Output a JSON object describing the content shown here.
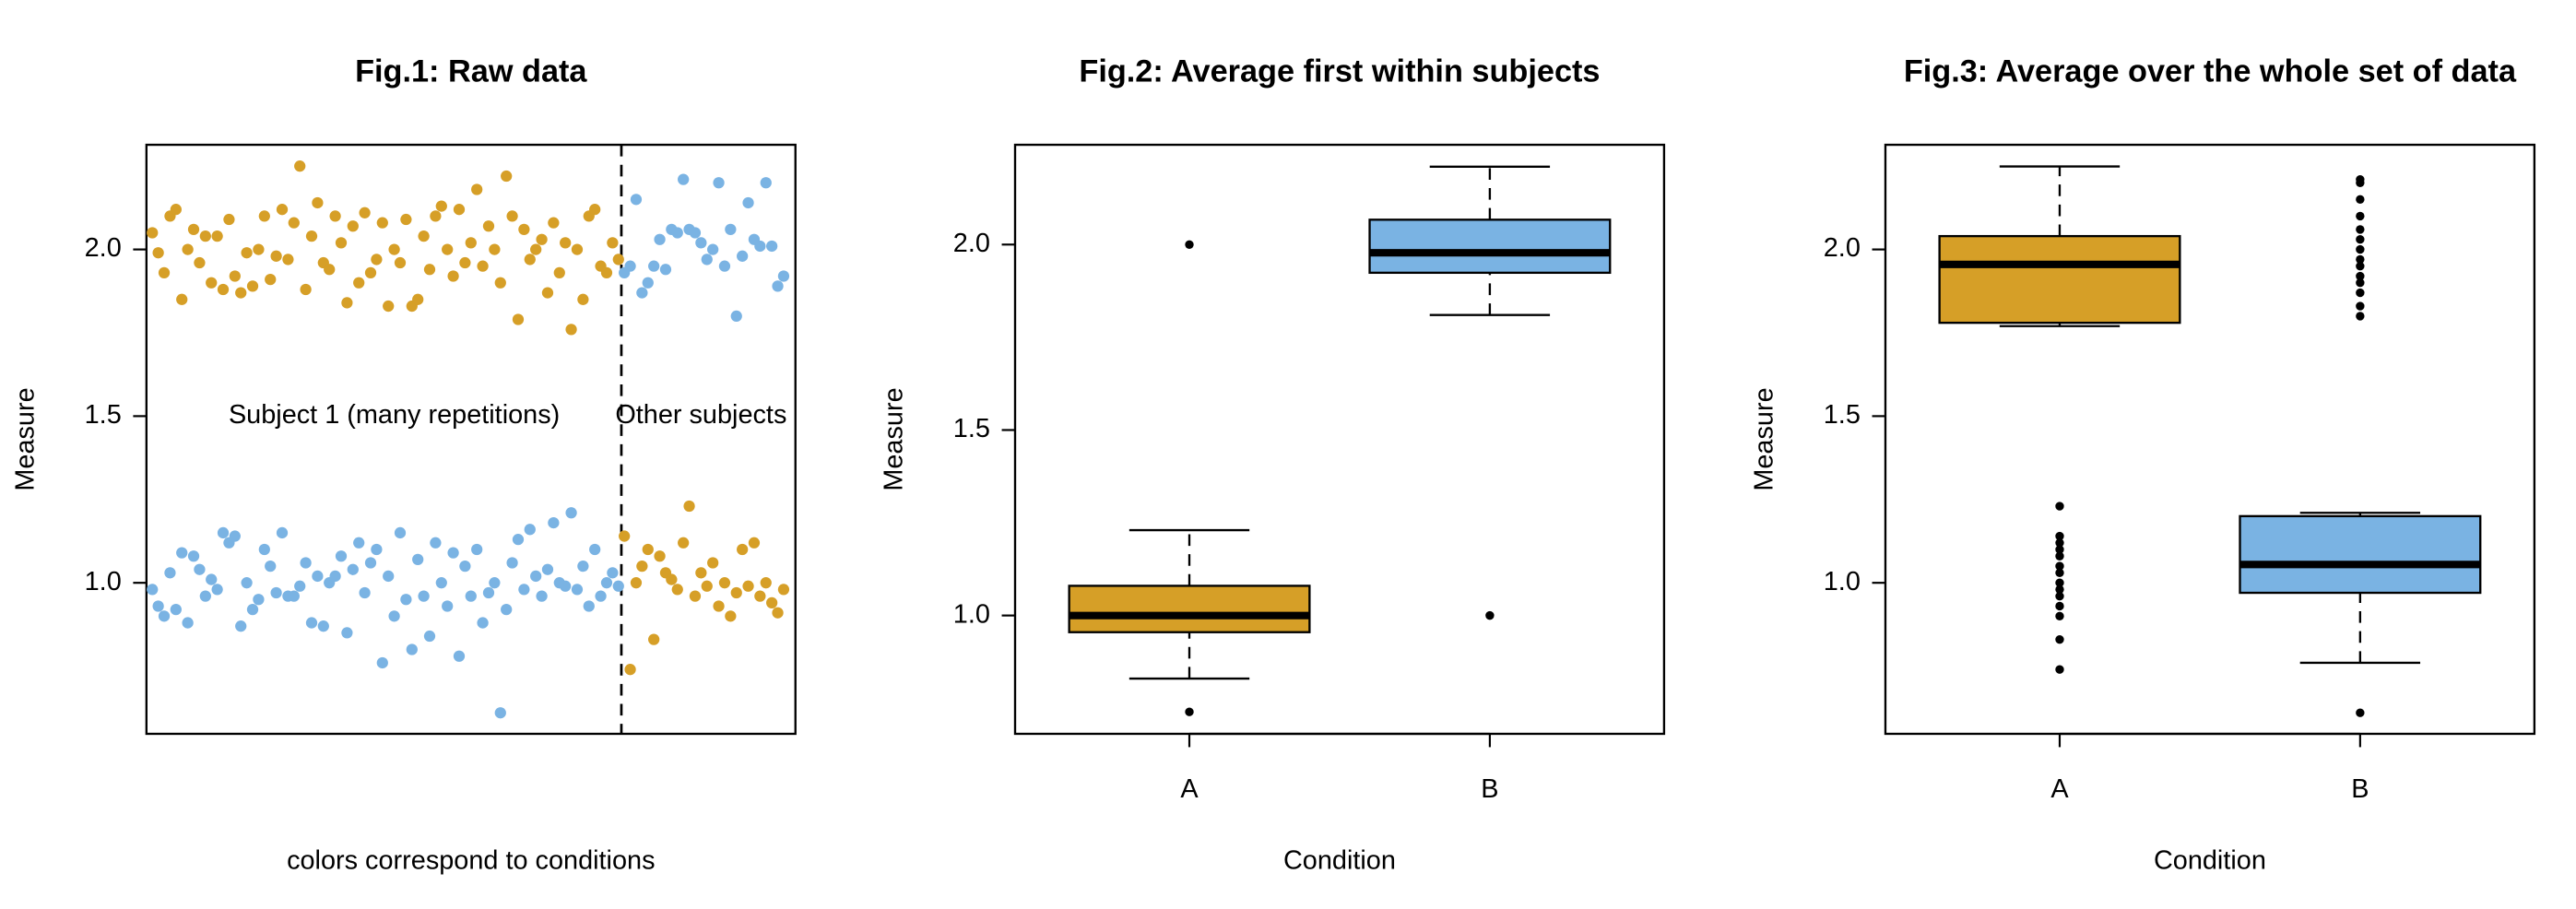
{
  "chart_data": [
    {
      "type": "scatter",
      "title": "Fig.1: Raw data",
      "xlabel": "colors correspond to conditions",
      "ylabel": "Measure",
      "xlim": [
        0,
        110
      ],
      "ylim": [
        0.547,
        2.314
      ],
      "yticks": [
        {
          "value": 1,
          "label": "1.0"
        },
        {
          "value": 1.5,
          "label": "1.5"
        },
        {
          "value": 2,
          "label": "2.0"
        }
      ],
      "vline": 80.5,
      "annotations": [
        {
          "text": "Subject 1 (many repetitions)",
          "x": 42,
          "y": 1.5
        },
        {
          "text": "Other subjects",
          "x": 94,
          "y": 1.5
        }
      ],
      "series": [
        {
          "color": "#D69F27",
          "x": [
            1,
            2,
            3,
            4,
            5,
            6,
            7,
            8,
            9,
            10,
            11,
            12,
            13,
            14,
            15,
            16,
            17,
            18,
            19,
            20,
            21,
            22,
            23,
            24,
            25,
            26,
            27,
            28,
            29,
            30,
            31,
            32,
            33,
            34,
            35,
            36,
            37,
            38,
            39,
            40,
            41,
            42,
            43,
            44,
            45,
            46,
            47,
            48,
            49,
            50,
            51,
            52,
            53,
            54,
            55,
            56,
            57,
            58,
            59,
            60,
            61,
            62,
            63,
            64,
            65,
            66,
            67,
            68,
            69,
            70,
            71,
            72,
            73,
            74,
            75,
            76,
            77,
            78,
            79,
            80
          ],
          "values": [
            2.05,
            1.99,
            1.93,
            2.1,
            2.12,
            1.85,
            2.0,
            2.06,
            1.96,
            2.04,
            1.9,
            2.04,
            1.88,
            2.09,
            1.92,
            1.87,
            1.99,
            1.89,
            2.0,
            2.1,
            1.91,
            1.98,
            2.12,
            1.97,
            2.08,
            2.25,
            1.88,
            2.04,
            2.14,
            1.96,
            1.94,
            2.1,
            2.02,
            1.84,
            2.07,
            1.9,
            2.11,
            1.93,
            1.97,
            2.08,
            1.83,
            2.0,
            1.96,
            2.09,
            1.83,
            1.85,
            2.04,
            1.94,
            2.1,
            2.13,
            2.0,
            1.92,
            2.12,
            1.96,
            2.02,
            2.18,
            1.95,
            2.07,
            2.0,
            1.9,
            2.22,
            2.1,
            1.79,
            2.06,
            1.97,
            2.0,
            2.03,
            1.87,
            2.08,
            1.93,
            2.02,
            1.76,
            2.0,
            1.85,
            2.1,
            2.12,
            1.95,
            1.93,
            2.02,
            1.97
          ]
        },
        {
          "color": "#7AB3E3",
          "x": [
            1,
            2,
            3,
            4,
            5,
            6,
            7,
            8,
            9,
            10,
            11,
            12,
            13,
            14,
            15,
            16,
            17,
            18,
            19,
            20,
            21,
            22,
            23,
            24,
            25,
            26,
            27,
            28,
            29,
            30,
            31,
            32,
            33,
            34,
            35,
            36,
            37,
            38,
            39,
            40,
            41,
            42,
            43,
            44,
            45,
            46,
            47,
            48,
            49,
            50,
            51,
            52,
            53,
            54,
            55,
            56,
            57,
            58,
            59,
            60,
            61,
            62,
            63,
            64,
            65,
            66,
            67,
            68,
            69,
            70,
            71,
            72,
            73,
            74,
            75,
            76,
            77,
            78,
            79,
            80
          ],
          "values": [
            0.98,
            0.93,
            0.9,
            1.03,
            0.92,
            1.09,
            0.88,
            1.08,
            1.04,
            0.96,
            1.01,
            0.98,
            1.15,
            1.12,
            1.14,
            0.87,
            1.0,
            0.92,
            0.95,
            1.1,
            1.05,
            0.97,
            1.15,
            0.96,
            0.96,
            0.99,
            1.06,
            0.88,
            1.02,
            0.87,
            1.0,
            1.02,
            1.08,
            0.85,
            1.04,
            1.12,
            0.97,
            1.06,
            1.1,
            0.76,
            1.02,
            0.9,
            1.15,
            0.95,
            0.8,
            1.07,
            0.96,
            0.84,
            1.12,
            1.0,
            0.93,
            1.09,
            0.78,
            1.05,
            0.96,
            1.1,
            0.88,
            0.97,
            1.0,
            0.61,
            0.92,
            1.06,
            1.13,
            0.98,
            1.16,
            1.02,
            0.96,
            1.04,
            1.18,
            1.0,
            0.99,
            1.21,
            0.98,
            1.05,
            0.93,
            1.1,
            0.96,
            1.0,
            1.03,
            0.99
          ]
        },
        {
          "color": "#7AB3E3",
          "x": [
            81,
            82,
            83,
            84,
            85,
            86,
            87,
            88,
            89,
            90,
            91,
            92,
            93,
            94,
            95,
            96,
            97,
            98,
            99,
            100,
            101,
            102,
            103,
            104,
            105,
            106,
            107,
            108
          ],
          "values": [
            1.93,
            1.95,
            2.15,
            1.87,
            1.9,
            1.95,
            2.03,
            1.94,
            2.06,
            2.05,
            2.21,
            2.06,
            2.05,
            2.02,
            1.97,
            2.0,
            2.2,
            1.95,
            2.06,
            1.8,
            1.98,
            2.14,
            2.03,
            2.01,
            2.2,
            2.01,
            1.89,
            1.92
          ]
        },
        {
          "color": "#D69F27",
          "x": [
            81,
            82,
            83,
            84,
            85,
            86,
            87,
            88,
            89,
            90,
            91,
            92,
            93,
            94,
            95,
            96,
            97,
            98,
            99,
            100,
            101,
            102,
            103,
            104,
            105,
            106,
            107,
            108
          ],
          "values": [
            1.14,
            0.74,
            1.0,
            1.05,
            1.1,
            0.83,
            1.08,
            1.03,
            1.01,
            0.98,
            1.12,
            1.23,
            0.96,
            1.03,
            0.99,
            1.06,
            0.93,
            1.0,
            0.9,
            0.97,
            1.1,
            0.99,
            1.12,
            0.96,
            1.0,
            0.94,
            0.91,
            0.98
          ]
        }
      ]
    },
    {
      "type": "box",
      "title": "Fig.2: Average first within subjects",
      "xlabel": "Condition",
      "ylabel": "Measure",
      "categories": [
        "A",
        "B"
      ],
      "colors": [
        "#D69F27",
        "#7AB3E3"
      ],
      "ylim": [
        0.681,
        2.269
      ],
      "yticks": [
        {
          "value": 1,
          "label": "1.0"
        },
        {
          "value": 1.5,
          "label": "1.5"
        },
        {
          "value": 2,
          "label": "2.0"
        }
      ],
      "boxes": [
        {
          "whislo": 0.83,
          "q1": 0.955,
          "median": 1.0,
          "q3": 1.08,
          "whishi": 1.23,
          "fliers": [
            0.74,
            2.0
          ]
        },
        {
          "whislo": 1.81,
          "q1": 1.924,
          "median": 1.978,
          "q3": 2.067,
          "whishi": 2.21,
          "fliers": [
            1.0
          ]
        }
      ]
    },
    {
      "type": "box",
      "title": "Fig.3: Average over the whole set of data",
      "xlabel": "Condition",
      "ylabel": "Measure",
      "categories": [
        "A",
        "B"
      ],
      "colors": [
        "#D69F27",
        "#7AB3E3"
      ],
      "ylim": [
        0.547,
        2.314
      ],
      "yticks": [
        {
          "value": 1,
          "label": "1.0"
        },
        {
          "value": 1.5,
          "label": "1.5"
        },
        {
          "value": 2,
          "label": "2.0"
        }
      ],
      "boxes": [
        {
          "whislo": 1.77,
          "q1": 1.78,
          "median": 1.955,
          "q3": 2.04,
          "whishi": 2.249,
          "fliers": [
            1.23,
            1.14,
            1.12,
            1.1,
            1.08,
            1.05,
            1.03,
            1.0,
            0.98,
            0.96,
            0.93,
            0.9,
            0.83,
            0.74
          ]
        },
        {
          "whislo": 0.76,
          "q1": 0.97,
          "median": 1.055,
          "q3": 1.2,
          "whishi": 1.21,
          "fliers": [
            0.61,
            2.21,
            2.2,
            2.15,
            2.1,
            2.06,
            2.03,
            2.0,
            1.97,
            1.95,
            1.92,
            1.9,
            1.87,
            1.83,
            1.8
          ]
        }
      ]
    }
  ]
}
